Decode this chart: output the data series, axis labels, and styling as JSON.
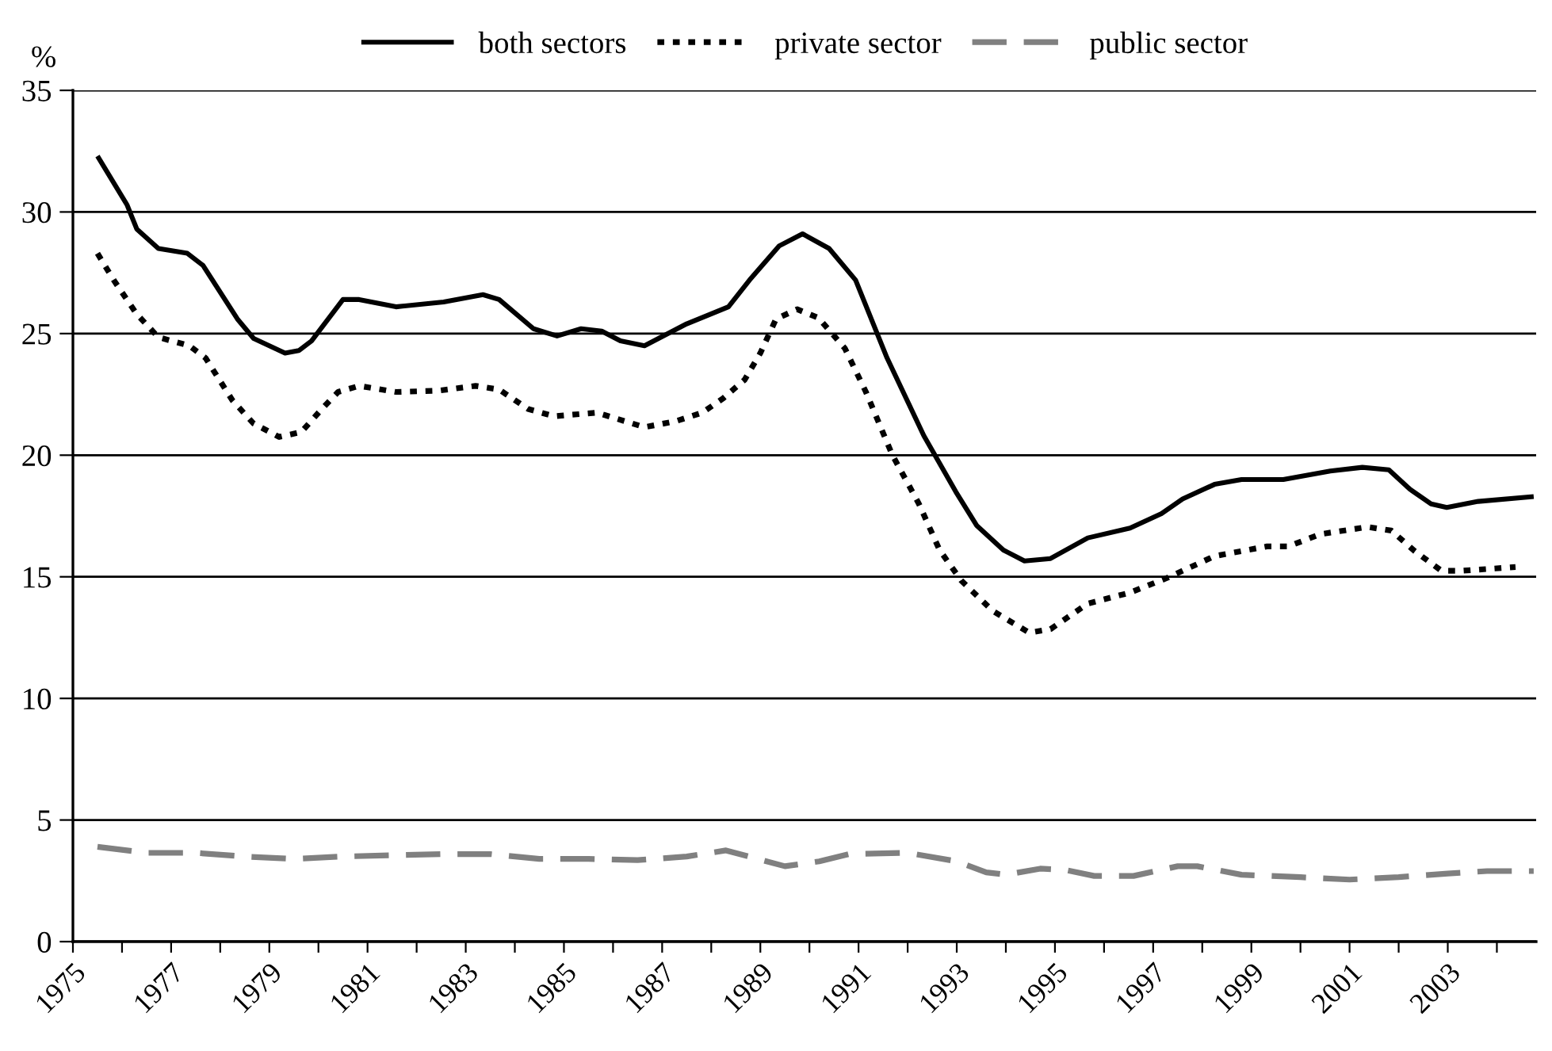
{
  "chart_data": {
    "type": "line",
    "ylabel": "%",
    "xlim": [
      1975,
      2004.8
    ],
    "ylim": [
      0,
      35
    ],
    "yticks": [
      0,
      5,
      10,
      15,
      20,
      25,
      30,
      35
    ],
    "xticks": [
      1975,
      {
        "value": 1976,
        "label": null
      },
      1977,
      {
        "value": 1978,
        "label": null
      },
      1979,
      {
        "value": 1980,
        "label": null
      },
      1981,
      {
        "value": 1982,
        "label": null
      },
      1983,
      {
        "value": 1984,
        "label": null
      },
      1985,
      {
        "value": 1986,
        "label": null
      },
      1987,
      {
        "value": 1988,
        "label": null
      },
      1989,
      {
        "value": 1990,
        "label": null
      },
      1991,
      {
        "value": 1992,
        "label": null
      },
      1993,
      {
        "value": 1994,
        "label": null
      },
      1995,
      {
        "value": 1996,
        "label": null
      },
      1997,
      {
        "value": 1998,
        "label": null
      },
      1999,
      {
        "value": 2000,
        "label": null
      },
      2001,
      {
        "value": 2002,
        "label": null
      },
      2003,
      {
        "value": 2004,
        "label": null
      }
    ],
    "grid": "y",
    "legend": "top",
    "series": [
      {
        "name": "both sectors",
        "color": "#000000",
        "line_style": "solid",
        "x": [
          1975.5,
          1976.1,
          1976.3,
          1976.74,
          1977.33,
          1977.65,
          1978.35,
          1978.68,
          1979.32,
          1979.6,
          1979.86,
          1980.5,
          1980.83,
          1981.58,
          1982.55,
          1983.35,
          1983.68,
          1984.38,
          1984.86,
          1985.35,
          1985.77,
          1986.15,
          1986.64,
          1987.5,
          1988.35,
          1988.78,
          1989.38,
          1989.86,
          1990.4,
          1990.94,
          1991.58,
          1992.33,
          1992.98,
          1993.41,
          1993.95,
          1994.38,
          1994.91,
          1995.67,
          1996.53,
          1997.17,
          1997.6,
          1998.25,
          1998.8,
          1999.65,
          2000.61,
          2001.26,
          2001.8,
          2002.23,
          2002.66,
          2002.98,
          2003.62,
          2004.75
        ],
        "values": [
          32.3,
          30.3,
          29.3,
          28.5,
          28.3,
          27.8,
          25.6,
          24.8,
          24.2,
          24.3,
          24.7,
          26.4,
          26.4,
          26.1,
          26.3,
          26.6,
          26.4,
          25.2,
          24.9,
          25.2,
          25.1,
          24.7,
          24.5,
          25.4,
          26.1,
          27.2,
          28.6,
          29.1,
          28.5,
          27.2,
          24.0,
          20.8,
          18.5,
          17.1,
          16.1,
          15.65,
          15.75,
          16.6,
          17.0,
          17.6,
          18.2,
          18.8,
          19.0,
          19.0,
          19.35,
          19.5,
          19.4,
          18.6,
          18.0,
          17.85,
          18.1,
          18.3
        ]
      },
      {
        "name": "private sector",
        "color": "#000000",
        "line_style": "dotted",
        "x": [
          1975.5,
          1975.83,
          1976.3,
          1976.74,
          1977.37,
          1977.7,
          1978.25,
          1978.68,
          1979.2,
          1979.65,
          1980.07,
          1980.4,
          1980.83,
          1981.58,
          1982.44,
          1983.2,
          1983.68,
          1984.27,
          1984.8,
          1985.67,
          1986.64,
          1987.28,
          1987.82,
          1988.25,
          1988.68,
          1989.0,
          1989.32,
          1989.75,
          1990.18,
          1990.72,
          1991.15,
          1991.69,
          1992.23,
          1992.65,
          1993.09,
          1993.73,
          1994.48,
          1994.91,
          1995.67,
          1996.53,
          1997.28,
          1998.25,
          1999.32,
          1999.75,
          2000.4,
          2001.37,
          2001.85,
          2002.33,
          2002.87,
          2003.3,
          2004.38
        ],
        "values": [
          28.3,
          27.2,
          25.8,
          24.85,
          24.5,
          24.0,
          22.25,
          21.3,
          20.75,
          20.95,
          21.9,
          22.6,
          22.85,
          22.6,
          22.65,
          22.85,
          22.7,
          21.9,
          21.6,
          21.75,
          21.15,
          21.4,
          21.75,
          22.35,
          23.1,
          24.2,
          25.6,
          26.0,
          25.65,
          24.4,
          22.6,
          20.0,
          18.0,
          16.1,
          14.85,
          13.6,
          12.7,
          12.85,
          13.9,
          14.35,
          14.95,
          15.85,
          16.25,
          16.25,
          16.75,
          17.05,
          16.9,
          16.05,
          15.25,
          15.25,
          15.4
        ]
      },
      {
        "name": "public sector",
        "color": "#808080",
        "line_style": "dashed",
        "x": [
          1975.5,
          1976.5,
          1977.5,
          1978.5,
          1979.5,
          1980.5,
          1981.5,
          1982.5,
          1983.5,
          1984.5,
          1985.5,
          1986.5,
          1987.5,
          1988.3,
          1989.5,
          1990.2,
          1990.8,
          1992.0,
          1993.0,
          1993.6,
          1994.0,
          1994.7,
          1995.2,
          1995.8,
          1996.6,
          1997.5,
          1997.9,
          1998.8,
          2000.0,
          2001.0,
          2002.0,
          2003.0,
          2003.8,
          2004.75
        ],
        "values": [
          3.9,
          3.65,
          3.65,
          3.5,
          3.4,
          3.5,
          3.55,
          3.6,
          3.6,
          3.4,
          3.4,
          3.35,
          3.5,
          3.75,
          3.1,
          3.3,
          3.6,
          3.65,
          3.3,
          2.85,
          2.75,
          3.0,
          2.95,
          2.7,
          2.7,
          3.1,
          3.1,
          2.75,
          2.65,
          2.55,
          2.65,
          2.8,
          2.9,
          2.9
        ]
      }
    ]
  }
}
